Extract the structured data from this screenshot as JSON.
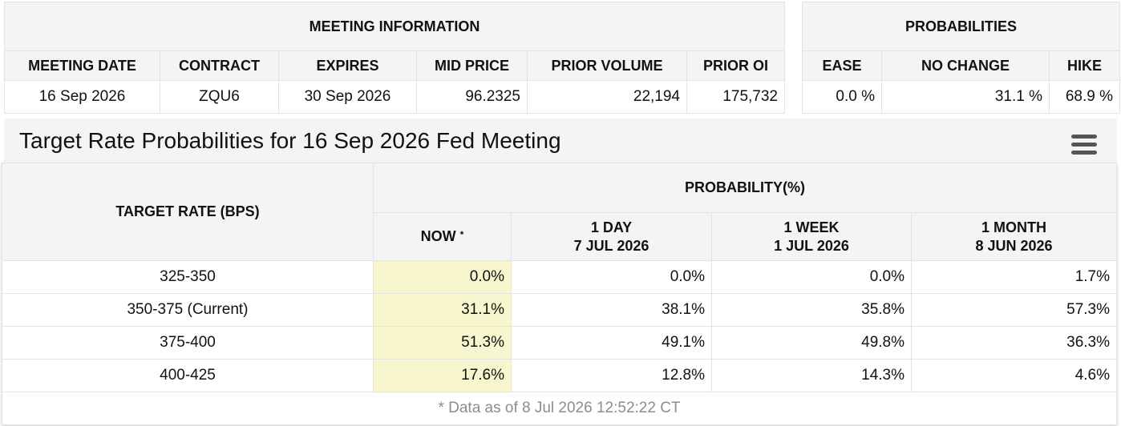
{
  "meeting_info": {
    "title": "MEETING INFORMATION",
    "headers": [
      "MEETING DATE",
      "CONTRACT",
      "EXPIRES",
      "MID PRICE",
      "PRIOR VOLUME",
      "PRIOR OI"
    ],
    "row": [
      "16 Sep 2026",
      "ZQU6",
      "30 Sep 2026",
      "96.2325",
      "22,194",
      "175,732"
    ]
  },
  "probabilities": {
    "title": "PROBABILITIES",
    "headers": [
      "EASE",
      "NO CHANGE",
      "HIKE"
    ],
    "row": [
      "0.0 %",
      "31.1 %",
      "68.9 %"
    ]
  },
  "chart": {
    "title": "Target Rate Probabilities for 16 Sep 2026 Fed Meeting",
    "menu_icon": "hamburger-menu-icon"
  },
  "target_table": {
    "target_header": "TARGET RATE (BPS)",
    "prob_header": "PROBABILITY(%)",
    "now_label": "NOW",
    "now_marker": "*",
    "periods": [
      {
        "label": "1 DAY",
        "date": "7 JUL 2026"
      },
      {
        "label": "1 WEEK",
        "date": "1 JUL 2026"
      },
      {
        "label": "1 MONTH",
        "date": "8 JUN 2026"
      }
    ],
    "rows": [
      {
        "rate": "325-350",
        "now": "0.0%",
        "day": "0.0%",
        "week": "0.0%",
        "month": "1.7%"
      },
      {
        "rate": "350-375 (Current)",
        "now": "31.1%",
        "day": "38.1%",
        "week": "35.8%",
        "month": "57.3%"
      },
      {
        "rate": "375-400",
        "now": "51.3%",
        "day": "49.1%",
        "week": "49.8%",
        "month": "36.3%"
      },
      {
        "rate": "400-425",
        "now": "17.6%",
        "day": "12.8%",
        "week": "14.3%",
        "month": "4.6%"
      }
    ],
    "footnote": "* Data as of 8 Jul 2026 12:52:22 CT"
  },
  "colors": {
    "header_bg": "#f4f4f4",
    "now_highlight": "#f7f6cf",
    "border": "#e3e3e3",
    "footnote": "#8c8c8c"
  }
}
